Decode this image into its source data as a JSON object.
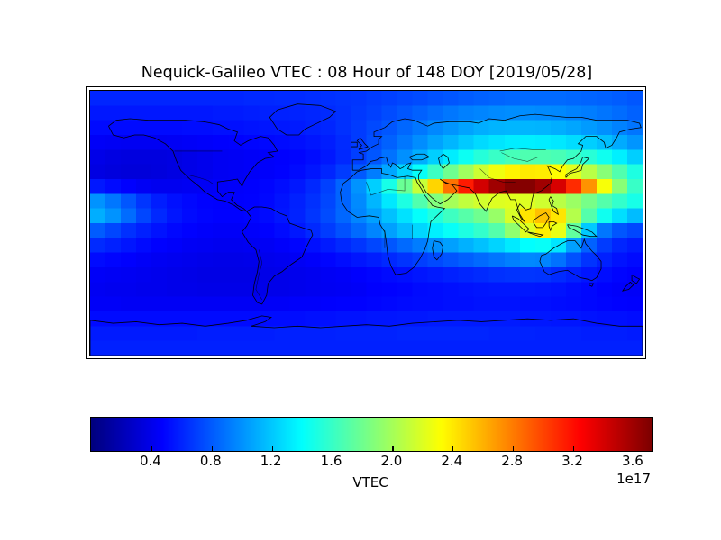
{
  "figure": {
    "background": "#ffffff",
    "frame_color": "#000000",
    "text_color": "#000000"
  },
  "chart_data": {
    "type": "heatmap",
    "title": "Nequick-Galileo VTEC : 08 Hour of 148 DOY [2019/05/28]",
    "colormap": "jet",
    "vmin": 0.0,
    "vmax": 3.72,
    "extent": {
      "lon_min": -180,
      "lon_max": 180,
      "lat_min": -90,
      "lat_max": 90
    },
    "grid": {
      "n_lon": 36,
      "n_lat": 18,
      "row_order": "north-to-south",
      "cell_deg": 10
    },
    "colorbar": {
      "label": "VTEC",
      "offset_text": "1e17",
      "orientation": "horizontal",
      "ticks": [
        0.4,
        0.8,
        1.2,
        1.6,
        2.0,
        2.4,
        2.8,
        3.2,
        3.6
      ]
    },
    "values": [
      [
        0.6,
        0.6,
        0.6,
        0.6,
        0.6,
        0.6,
        0.6,
        0.6,
        0.6,
        0.6,
        0.61,
        0.61,
        0.62,
        0.62,
        0.63,
        0.64,
        0.65,
        0.66,
        0.68,
        0.7,
        0.72,
        0.74,
        0.76,
        0.78,
        0.8,
        0.82,
        0.83,
        0.84,
        0.85,
        0.85,
        0.85,
        0.84,
        0.83,
        0.82,
        0.8,
        0.78
      ],
      [
        0.55,
        0.55,
        0.55,
        0.55,
        0.55,
        0.55,
        0.55,
        0.55,
        0.56,
        0.56,
        0.57,
        0.58,
        0.58,
        0.59,
        0.6,
        0.62,
        0.64,
        0.67,
        0.7,
        0.74,
        0.78,
        0.82,
        0.86,
        0.9,
        0.93,
        0.95,
        0.97,
        0.98,
        0.98,
        0.97,
        0.96,
        0.94,
        0.92,
        0.89,
        0.86,
        0.82
      ],
      [
        0.5,
        0.5,
        0.5,
        0.5,
        0.5,
        0.5,
        0.51,
        0.51,
        0.52,
        0.52,
        0.53,
        0.54,
        0.55,
        0.56,
        0.58,
        0.6,
        0.64,
        0.68,
        0.73,
        0.78,
        0.84,
        0.9,
        0.96,
        1.01,
        1.06,
        1.1,
        1.12,
        1.13,
        1.13,
        1.12,
        1.1,
        1.07,
        1.03,
        0.99,
        0.94,
        0.89
      ],
      [
        0.44,
        0.43,
        0.42,
        0.42,
        0.42,
        0.43,
        0.44,
        0.45,
        0.46,
        0.47,
        0.48,
        0.49,
        0.5,
        0.52,
        0.54,
        0.57,
        0.62,
        0.68,
        0.75,
        0.82,
        0.9,
        0.98,
        1.06,
        1.13,
        1.2,
        1.26,
        1.3,
        1.33,
        1.34,
        1.33,
        1.31,
        1.27,
        1.22,
        1.16,
        1.09,
        1.01
      ],
      [
        0.38,
        0.36,
        0.35,
        0.35,
        0.35,
        0.36,
        0.38,
        0.4,
        0.42,
        0.43,
        0.44,
        0.45,
        0.46,
        0.48,
        0.51,
        0.55,
        0.61,
        0.69,
        0.78,
        0.88,
        0.99,
        1.1,
        1.22,
        1.33,
        1.44,
        1.53,
        1.6,
        1.65,
        1.68,
        1.68,
        1.66,
        1.61,
        1.54,
        1.45,
        1.34,
        1.22
      ],
      [
        0.36,
        0.34,
        0.33,
        0.33,
        0.34,
        0.36,
        0.38,
        0.4,
        0.42,
        0.43,
        0.44,
        0.45,
        0.47,
        0.5,
        0.54,
        0.6,
        0.68,
        0.79,
        0.92,
        1.07,
        1.24,
        1.42,
        1.61,
        1.8,
        1.98,
        2.14,
        2.27,
        2.36,
        2.4,
        2.39,
        2.33,
        2.22,
        2.07,
        1.89,
        1.69,
        1.5
      ],
      [
        0.55,
        0.5,
        0.46,
        0.43,
        0.41,
        0.41,
        0.42,
        0.43,
        0.44,
        0.45,
        0.46,
        0.48,
        0.51,
        0.55,
        0.61,
        0.7,
        0.83,
        1.0,
        1.22,
        1.48,
        1.78,
        2.12,
        2.48,
        2.84,
        3.16,
        3.42,
        3.6,
        3.7,
        3.7,
        3.6,
        3.4,
        3.1,
        2.72,
        2.3,
        1.9,
        1.6
      ],
      [
        1.0,
        0.9,
        0.78,
        0.66,
        0.57,
        0.52,
        0.49,
        0.47,
        0.46,
        0.46,
        0.47,
        0.49,
        0.53,
        0.58,
        0.64,
        0.72,
        0.83,
        0.97,
        1.13,
        1.31,
        1.5,
        1.69,
        1.87,
        2.0,
        2.1,
        2.16,
        2.2,
        2.22,
        2.2,
        2.15,
        2.07,
        1.96,
        1.83,
        1.7,
        1.58,
        1.48
      ],
      [
        1.1,
        1.0,
        0.86,
        0.72,
        0.61,
        0.54,
        0.5,
        0.48,
        0.47,
        0.47,
        0.48,
        0.5,
        0.54,
        0.59,
        0.66,
        0.74,
        0.84,
        0.95,
        1.05,
        1.17,
        1.29,
        1.41,
        1.52,
        1.62,
        1.71,
        1.8,
        1.95,
        2.18,
        2.42,
        2.55,
        2.42,
        2.05,
        1.7,
        1.45,
        1.28,
        1.15
      ],
      [
        0.8,
        0.72,
        0.64,
        0.58,
        0.53,
        0.49,
        0.47,
        0.45,
        0.44,
        0.44,
        0.45,
        0.47,
        0.5,
        0.55,
        0.61,
        0.68,
        0.76,
        0.85,
        0.95,
        1.05,
        1.15,
        1.25,
        1.34,
        1.42,
        1.5,
        1.58,
        1.7,
        1.92,
        2.2,
        2.38,
        2.25,
        1.75,
        1.2,
        0.9,
        0.78,
        0.72
      ],
      [
        0.62,
        0.58,
        0.54,
        0.5,
        0.47,
        0.45,
        0.43,
        0.42,
        0.41,
        0.41,
        0.42,
        0.43,
        0.45,
        0.48,
        0.52,
        0.56,
        0.61,
        0.66,
        0.72,
        0.78,
        0.85,
        0.92,
        0.99,
        1.05,
        1.11,
        1.17,
        1.24,
        1.32,
        1.4,
        1.42,
        1.3,
        1.05,
        0.82,
        0.68,
        0.6,
        0.56
      ],
      [
        0.5,
        0.48,
        0.46,
        0.44,
        0.42,
        0.41,
        0.4,
        0.39,
        0.38,
        0.38,
        0.39,
        0.4,
        0.41,
        0.43,
        0.45,
        0.48,
        0.51,
        0.54,
        0.57,
        0.61,
        0.65,
        0.69,
        0.73,
        0.77,
        0.81,
        0.85,
        0.89,
        0.93,
        0.96,
        0.95,
        0.88,
        0.76,
        0.65,
        0.58,
        0.53,
        0.5
      ],
      [
        0.44,
        0.43,
        0.42,
        0.41,
        0.4,
        0.39,
        0.38,
        0.37,
        0.37,
        0.37,
        0.37,
        0.38,
        0.39,
        0.4,
        0.41,
        0.43,
        0.44,
        0.46,
        0.48,
        0.5,
        0.52,
        0.54,
        0.56,
        0.58,
        0.6,
        0.62,
        0.64,
        0.65,
        0.66,
        0.65,
        0.62,
        0.58,
        0.54,
        0.51,
        0.48,
        0.46
      ],
      [
        0.42,
        0.41,
        0.41,
        0.4,
        0.4,
        0.39,
        0.39,
        0.38,
        0.38,
        0.38,
        0.38,
        0.39,
        0.39,
        0.4,
        0.41,
        0.42,
        0.43,
        0.44,
        0.46,
        0.47,
        0.48,
        0.5,
        0.51,
        0.52,
        0.53,
        0.54,
        0.55,
        0.55,
        0.55,
        0.54,
        0.53,
        0.51,
        0.49,
        0.47,
        0.45,
        0.44
      ],
      [
        0.44,
        0.44,
        0.43,
        0.43,
        0.43,
        0.43,
        0.43,
        0.43,
        0.43,
        0.43,
        0.43,
        0.44,
        0.44,
        0.45,
        0.45,
        0.46,
        0.47,
        0.47,
        0.48,
        0.49,
        0.5,
        0.51,
        0.51,
        0.52,
        0.52,
        0.53,
        0.53,
        0.53,
        0.52,
        0.52,
        0.51,
        0.5,
        0.49,
        0.48,
        0.47,
        0.46
      ],
      [
        0.5,
        0.5,
        0.5,
        0.5,
        0.5,
        0.5,
        0.5,
        0.5,
        0.5,
        0.5,
        0.5,
        0.51,
        0.51,
        0.51,
        0.52,
        0.52,
        0.53,
        0.53,
        0.54,
        0.54,
        0.55,
        0.55,
        0.56,
        0.56,
        0.56,
        0.56,
        0.56,
        0.56,
        0.55,
        0.55,
        0.54,
        0.54,
        0.53,
        0.52,
        0.52,
        0.51
      ],
      [
        0.56,
        0.56,
        0.56,
        0.56,
        0.56,
        0.56,
        0.56,
        0.57,
        0.57,
        0.57,
        0.57,
        0.57,
        0.58,
        0.58,
        0.58,
        0.58,
        0.59,
        0.59,
        0.59,
        0.59,
        0.6,
        0.6,
        0.6,
        0.6,
        0.6,
        0.6,
        0.59,
        0.59,
        0.59,
        0.58,
        0.58,
        0.58,
        0.57,
        0.57,
        0.57,
        0.56
      ],
      [
        0.58,
        0.58,
        0.58,
        0.58,
        0.58,
        0.58,
        0.58,
        0.58,
        0.58,
        0.58,
        0.58,
        0.58,
        0.58,
        0.58,
        0.58,
        0.58,
        0.58,
        0.58,
        0.58,
        0.58,
        0.58,
        0.58,
        0.58,
        0.58,
        0.58,
        0.58,
        0.58,
        0.58,
        0.58,
        0.58,
        0.58,
        0.58,
        0.58,
        0.58,
        0.58,
        0.58
      ]
    ]
  }
}
